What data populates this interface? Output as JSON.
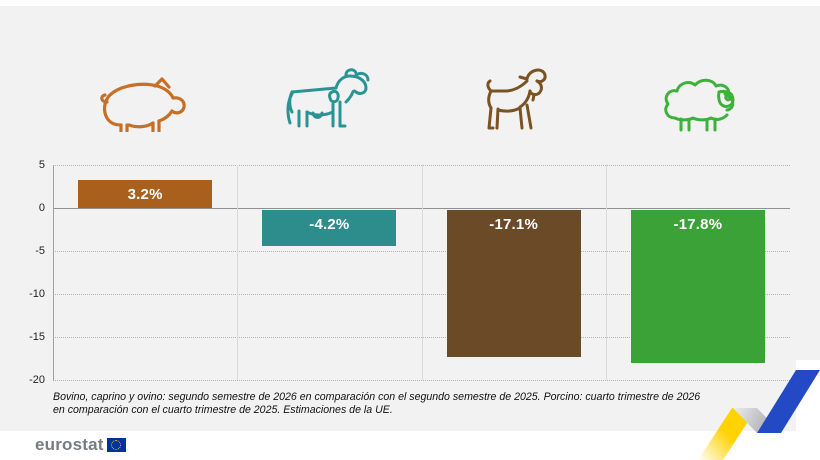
{
  "chart_data": {
    "type": "bar",
    "categories": [
      "porcino",
      "bovino",
      "caprino",
      "ovino"
    ],
    "values": [
      3.2,
      -4.2,
      -17.1,
      -17.8
    ],
    "labels": [
      "3.2%",
      "-4.2%",
      "-17.1%",
      "-17.8%"
    ],
    "colors": [
      "#a9601c",
      "#2d8c8c",
      "#6b4a28",
      "#3aa236"
    ],
    "title": "",
    "xlabel": "",
    "ylabel": "",
    "ylim": [
      -20,
      5
    ],
    "yticks": [
      5,
      0,
      -5,
      -10,
      -15,
      -20
    ],
    "grid": "dotted horizontal lines, solid zero line, vertical column separators",
    "legend": "none (animal icons above each bar)"
  },
  "icons": [
    {
      "name": "pig-icon",
      "category": "porcino",
      "color": "#c66f26"
    },
    {
      "name": "cow-icon",
      "category": "bovino",
      "color": "#2a9494"
    },
    {
      "name": "goat-icon",
      "category": "caprino",
      "color": "#7b5221"
    },
    {
      "name": "sheep-icon",
      "category": "ovino",
      "color": "#3cb23a"
    }
  ],
  "footnote": {
    "text": "Bovino, caprino y ovino: segundo semestre de 2026 en comparación con el segundo semestre de 2025. Porcino: cuarto trimestre de 2026 en comparación con el cuarto trimestre de 2025. Estimaciones de la UE."
  },
  "branding": {
    "logo_text": "eurostat",
    "flag_color": "#003399",
    "star_color": "#ffcc00",
    "ribbon_colors": {
      "yellow": "#ffd200",
      "gray": "#9b9ba1",
      "blue": "#2449c5"
    }
  }
}
